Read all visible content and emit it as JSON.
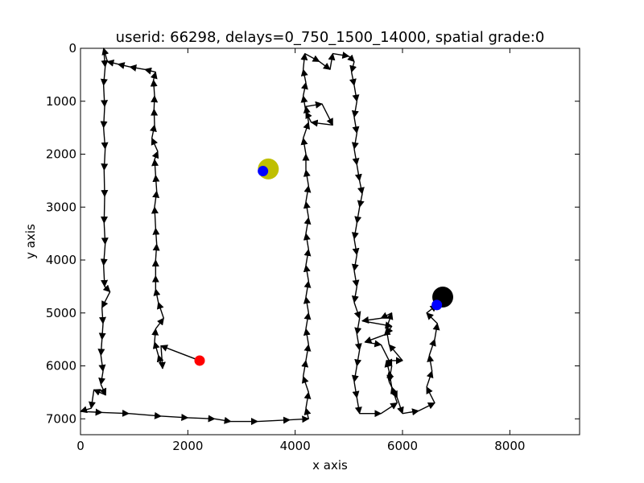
{
  "chart_data": {
    "type": "scatter",
    "title": "userid: 66298, delays=0_750_1500_14000, spatial grade:0",
    "xlabel": "x axis",
    "ylabel": "y axis",
    "xlim": [
      0,
      9300
    ],
    "ylim": [
      7300,
      0
    ],
    "y_inverted": true,
    "x_ticks": [
      0,
      2000,
      4000,
      6000,
      8000
    ],
    "y_ticks": [
      0,
      1000,
      2000,
      3000,
      4000,
      5000,
      6000,
      7000
    ],
    "x_tick_labels": [
      "0",
      "2000",
      "4000",
      "6000",
      "8000"
    ],
    "y_tick_labels": [
      "0",
      "1000",
      "2000",
      "3000",
      "4000",
      "5000",
      "6000",
      "7000"
    ],
    "grid": false,
    "path_color": "#000000",
    "trajectory": [
      [
        2220,
        5900
      ],
      [
        1500,
        5620
      ],
      [
        1530,
        6050
      ],
      [
        1450,
        5800
      ],
      [
        1380,
        5550
      ],
      [
        1400,
        5300
      ],
      [
        1550,
        5100
      ],
      [
        1450,
        4800
      ],
      [
        1400,
        4550
      ],
      [
        1400,
        4300
      ],
      [
        1400,
        4000
      ],
      [
        1420,
        3700
      ],
      [
        1400,
        3400
      ],
      [
        1380,
        3000
      ],
      [
        1420,
        2700
      ],
      [
        1400,
        2400
      ],
      [
        1380,
        2100
      ],
      [
        1440,
        1950
      ],
      [
        1330,
        1700
      ],
      [
        1380,
        1450
      ],
      [
        1370,
        1150
      ],
      [
        1380,
        900
      ],
      [
        1360,
        600
      ],
      [
        1400,
        450
      ],
      [
        1200,
        400
      ],
      [
        920,
        350
      ],
      [
        700,
        300
      ],
      [
        500,
        250
      ],
      [
        430,
        0
      ],
      [
        460,
        350
      ],
      [
        430,
        700
      ],
      [
        450,
        1100
      ],
      [
        430,
        1500
      ],
      [
        460,
        1900
      ],
      [
        440,
        2300
      ],
      [
        450,
        2800
      ],
      [
        440,
        3300
      ],
      [
        460,
        3700
      ],
      [
        430,
        4100
      ],
      [
        450,
        4500
      ],
      [
        550,
        4600
      ],
      [
        400,
        4900
      ],
      [
        420,
        5200
      ],
      [
        400,
        5500
      ],
      [
        380,
        5800
      ],
      [
        420,
        6100
      ],
      [
        380,
        6350
      ],
      [
        470,
        6550
      ],
      [
        250,
        6450
      ],
      [
        200,
        6800
      ],
      [
        0,
        6860
      ],
      [
        400,
        6880
      ],
      [
        900,
        6900
      ],
      [
        1500,
        6950
      ],
      [
        2000,
        6980
      ],
      [
        2500,
        7000
      ],
      [
        2800,
        7050
      ],
      [
        3300,
        7050
      ],
      [
        3900,
        7020
      ],
      [
        4250,
        7000
      ],
      [
        4200,
        6800
      ],
      [
        4250,
        6500
      ],
      [
        4150,
        6200
      ],
      [
        4200,
        5900
      ],
      [
        4250,
        5600
      ],
      [
        4200,
        5300
      ],
      [
        4250,
        5000
      ],
      [
        4200,
        4700
      ],
      [
        4250,
        4400
      ],
      [
        4200,
        4100
      ],
      [
        4250,
        3800
      ],
      [
        4200,
        3500
      ],
      [
        4250,
        3200
      ],
      [
        4200,
        2900
      ],
      [
        4250,
        2600
      ],
      [
        4200,
        2300
      ],
      [
        4200,
        2000
      ],
      [
        4150,
        1700
      ],
      [
        4250,
        1400
      ],
      [
        4200,
        1100
      ],
      [
        4500,
        1050
      ],
      [
        4700,
        1450
      ],
      [
        4300,
        1400
      ],
      [
        4200,
        1200
      ],
      [
        4150,
        900
      ],
      [
        4200,
        650
      ],
      [
        4150,
        400
      ],
      [
        4180,
        100
      ],
      [
        4450,
        250
      ],
      [
        4650,
        400
      ],
      [
        4700,
        100
      ],
      [
        5000,
        150
      ],
      [
        5100,
        250
      ],
      [
        5050,
        450
      ],
      [
        5100,
        700
      ],
      [
        5150,
        1000
      ],
      [
        5100,
        1300
      ],
      [
        5150,
        1600
      ],
      [
        5100,
        1900
      ],
      [
        5150,
        2200
      ],
      [
        5200,
        2500
      ],
      [
        5250,
        2750
      ],
      [
        5200,
        3000
      ],
      [
        5150,
        3300
      ],
      [
        5100,
        3600
      ],
      [
        5150,
        3900
      ],
      [
        5100,
        4200
      ],
      [
        5150,
        4500
      ],
      [
        5100,
        4800
      ],
      [
        5200,
        5100
      ],
      [
        5150,
        5400
      ],
      [
        5200,
        5700
      ],
      [
        5150,
        6000
      ],
      [
        5100,
        6300
      ],
      [
        5150,
        6600
      ],
      [
        5200,
        6900
      ],
      [
        5600,
        6900
      ],
      [
        5900,
        6700
      ],
      [
        5800,
        6400
      ],
      [
        5750,
        6100
      ],
      [
        5700,
        5900
      ],
      [
        6000,
        5900
      ],
      [
        5750,
        5600
      ],
      [
        5700,
        5300
      ],
      [
        5800,
        5000
      ],
      [
        5600,
        5100
      ],
      [
        5250,
        5150
      ],
      [
        5800,
        5250
      ],
      [
        5700,
        5400
      ],
      [
        5300,
        5550
      ],
      [
        5600,
        5600
      ],
      [
        5800,
        6000
      ],
      [
        5750,
        6300
      ],
      [
        5900,
        6600
      ],
      [
        6000,
        6900
      ],
      [
        6300,
        6850
      ],
      [
        6600,
        6700
      ],
      [
        6450,
        6400
      ],
      [
        6550,
        6100
      ],
      [
        6500,
        5800
      ],
      [
        6600,
        5500
      ],
      [
        6650,
        5200
      ],
      [
        6450,
        5000
      ],
      [
        6640,
        4850
      ],
      [
        6750,
        4700
      ]
    ],
    "markers": [
      {
        "x": 3500,
        "y": 2280,
        "size": "large",
        "color": "#bfbf00"
      },
      {
        "x": 3400,
        "y": 2320,
        "size": "small",
        "color": "#0000ff"
      },
      {
        "x": 6750,
        "y": 4700,
        "size": "large",
        "color": "#000000"
      },
      {
        "x": 6640,
        "y": 4850,
        "size": "small",
        "color": "#0000ff"
      },
      {
        "x": 2220,
        "y": 5900,
        "size": "small",
        "color": "#ff0000"
      }
    ]
  }
}
